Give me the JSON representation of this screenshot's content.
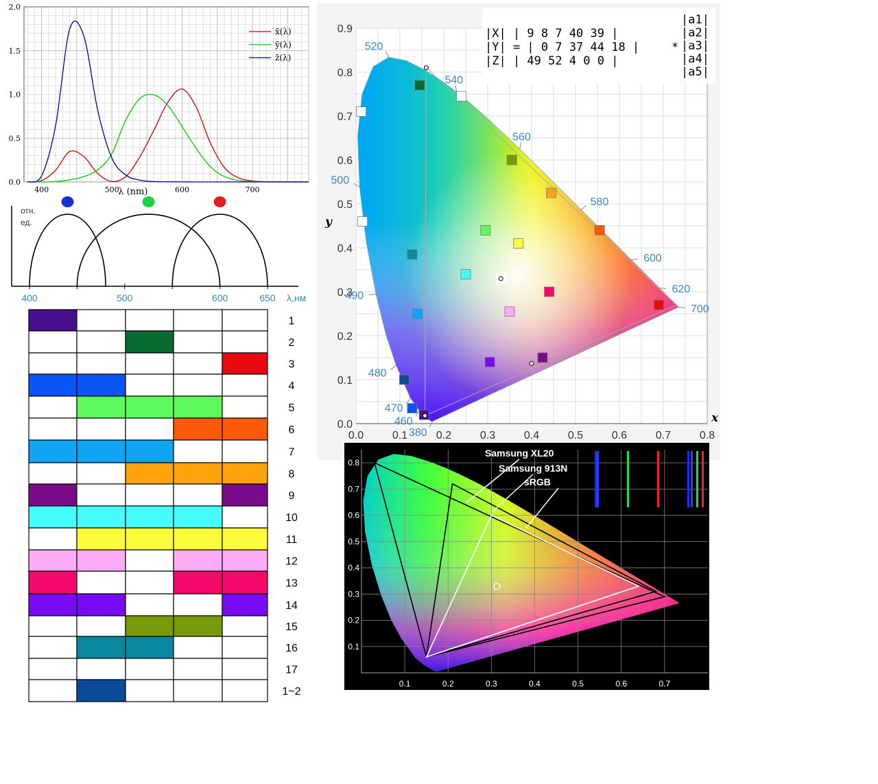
{
  "chart_data": [
    {
      "type": "line",
      "id": "cie-color-matching-functions",
      "x": [
        380,
        400,
        420,
        440,
        460,
        480,
        500,
        520,
        540,
        560,
        580,
        600,
        620,
        640,
        660,
        680,
        700,
        720,
        740,
        780
      ],
      "xlabel": "λ (nm)",
      "xticks": [
        "400",
        "500",
        "600",
        "700"
      ],
      "yticks": [
        "0.0",
        "0.5",
        "1.0",
        "1.5",
        "2.0"
      ],
      "xlim": [
        375,
        780
      ],
      "ylim": [
        0,
        2.0
      ],
      "grid": true,
      "legend_position": "top-right",
      "series": [
        {
          "name": "x̄(λ)",
          "color": "#cc0000",
          "values": [
            0.0,
            0.014,
            0.134,
            0.348,
            0.29,
            0.095,
            0.005,
            0.063,
            0.29,
            0.595,
            0.916,
            1.062,
            0.854,
            0.448,
            0.165,
            0.047,
            0.011,
            0.003,
            0.001,
            0.0
          ]
        },
        {
          "name": "ȳ(λ)",
          "color": "#00cc00",
          "values": [
            0.0,
            0.0004,
            0.004,
            0.023,
            0.06,
            0.139,
            0.323,
            0.71,
            0.954,
            0.995,
            0.87,
            0.631,
            0.381,
            0.175,
            0.061,
            0.017,
            0.004,
            0.001,
            0.0003,
            0.0
          ]
        },
        {
          "name": "z̄(λ)",
          "color": "#000099",
          "values": [
            0.0,
            0.068,
            0.646,
            1.747,
            1.669,
            0.813,
            0.272,
            0.078,
            0.02,
            0.004,
            0.002,
            0.001,
            0.0,
            0.0,
            0.0,
            0.0,
            0.0,
            0.0,
            0.0,
            0.0
          ]
        }
      ]
    },
    {
      "type": "line",
      "id": "cone-sensitivity-curves",
      "ylabel_lines": [
        "отн.",
        "ед."
      ],
      "xlabel": "λ,нм",
      "xticks": [
        "400",
        "500",
        "600",
        "650"
      ],
      "x_domain": [
        380,
        670
      ],
      "peaks": [
        {
          "center": 440,
          "from": 400,
          "to": 480,
          "marker_color": "#1530d0"
        },
        {
          "center": 525,
          "from": 450,
          "to": 600,
          "marker_color": "#20d040"
        },
        {
          "center": 600,
          "from": 550,
          "to": 650,
          "marker_color": "#e02020"
        }
      ]
    },
    {
      "type": "table",
      "id": "color-combination-table",
      "columns": 5,
      "row_labels": [
        "1",
        "2",
        "3",
        "4",
        "5",
        "6",
        "7",
        "8",
        "9",
        "10",
        "11",
        "12",
        "13",
        "14",
        "15",
        "16",
        "17",
        "1~2"
      ],
      "cells": [
        [
          "#46108f",
          "",
          "",
          "",
          ""
        ],
        [
          "",
          "",
          "#0a6b32",
          "",
          ""
        ],
        [
          "",
          "",
          "",
          "",
          "#e80a10"
        ],
        [
          "#0a55f5",
          "#0a55f5",
          "",
          "",
          ""
        ],
        [
          "",
          "#5cfa5a",
          "#5cfa5a",
          "#5cfa5a",
          ""
        ],
        [
          "",
          "",
          "",
          "#fc5a0a",
          "#fc5a0a"
        ],
        [
          "#10a4f5",
          "#10a4f5",
          "#10a4f5",
          "",
          ""
        ],
        [
          "",
          "",
          "#fca20a",
          "#fca20a",
          "#fca20a"
        ],
        [
          "#7a0c8a",
          "",
          "",
          "",
          "#7a0c8a"
        ],
        [
          "#45fcfc",
          "#45fcfc",
          "#45fcfc",
          "#45fcfc",
          ""
        ],
        [
          "",
          "#fcfc3a",
          "#fcfc3a",
          "#fcfc3a",
          "#fcfc3a"
        ],
        [
          "#fcacf5",
          "#fcacf5",
          "",
          "#fcacf5",
          "#fcacf5"
        ],
        [
          "#f50a6b",
          "",
          "",
          "#f50a6b",
          "#f50a6b"
        ],
        [
          "#780af5",
          "#780af5",
          "",
          "",
          "#780af5"
        ],
        [
          "",
          "",
          "#789a0a",
          "#789a0a",
          ""
        ],
        [
          "",
          "#0a88a0",
          "#0a88a0",
          "",
          ""
        ],
        [
          "",
          "",
          "",
          "",
          ""
        ],
        [
          "",
          "#0a4a9a",
          "",
          "",
          ""
        ]
      ]
    },
    {
      "type": "scatter",
      "id": "cie-xy-chromaticity-diagram",
      "xlabel": "x",
      "ylabel": "y",
      "xlim": [
        0,
        0.8
      ],
      "ylim": [
        0,
        0.9
      ],
      "xticks": [
        "0.0",
        "0.1",
        "0.2",
        "0.3",
        "0.4",
        "0.5",
        "0.6",
        "0.7",
        "0.8"
      ],
      "yticks": [
        "0.0",
        "0.1",
        "0.2",
        "0.3",
        "0.4",
        "0.5",
        "0.6",
        "0.7",
        "0.8",
        "0.9"
      ],
      "grid": true,
      "spectral_locus": [
        [
          0.1741,
          0.005
        ],
        [
          0.1738,
          0.0049
        ],
        [
          0.1733,
          0.0048
        ],
        [
          0.1726,
          0.0048
        ],
        [
          0.1714,
          0.0051
        ],
        [
          0.1689,
          0.0069
        ],
        [
          0.1644,
          0.0109
        ],
        [
          0.1566,
          0.0177
        ],
        [
          0.144,
          0.0297
        ],
        [
          0.1241,
          0.0578
        ],
        [
          0.0913,
          0.1327
        ],
        [
          0.0687,
          0.2007
        ],
        [
          0.0454,
          0.295
        ],
        [
          0.0235,
          0.4127
        ],
        [
          0.0082,
          0.5384
        ],
        [
          0.0039,
          0.6548
        ],
        [
          0.0139,
          0.7502
        ],
        [
          0.0389,
          0.812
        ],
        [
          0.0743,
          0.8338
        ],
        [
          0.1142,
          0.8262
        ],
        [
          0.1547,
          0.8059
        ],
        [
          0.1929,
          0.7816
        ],
        [
          0.2296,
          0.7543
        ],
        [
          0.2658,
          0.7243
        ],
        [
          0.3016,
          0.6923
        ],
        [
          0.3373,
          0.6589
        ],
        [
          0.3731,
          0.6245
        ],
        [
          0.4087,
          0.5896
        ],
        [
          0.4441,
          0.5547
        ],
        [
          0.4788,
          0.5202
        ],
        [
          0.5125,
          0.4866
        ],
        [
          0.5448,
          0.4544
        ],
        [
          0.5752,
          0.4242
        ],
        [
          0.6029,
          0.3965
        ],
        [
          0.627,
          0.3725
        ],
        [
          0.6482,
          0.3514
        ],
        [
          0.6658,
          0.334
        ],
        [
          0.6801,
          0.3197
        ],
        [
          0.6915,
          0.3083
        ],
        [
          0.7006,
          0.2993
        ],
        [
          0.7079,
          0.292
        ],
        [
          0.714,
          0.2859
        ],
        [
          0.719,
          0.2809
        ],
        [
          0.723,
          0.277
        ],
        [
          0.726,
          0.274
        ],
        [
          0.7347,
          0.2653
        ]
      ],
      "wavelength_labels": [
        {
          "text": "520",
          "x": 0.0743,
          "y": 0.8338
        },
        {
          "text": "540",
          "x": 0.2296,
          "y": 0.7543
        },
        {
          "text": "560",
          "x": 0.3731,
          "y": 0.6245
        },
        {
          "text": "580",
          "x": 0.5125,
          "y": 0.4866
        },
        {
          "text": "600",
          "x": 0.627,
          "y": 0.3725
        },
        {
          "text": "620",
          "x": 0.6915,
          "y": 0.3083
        },
        {
          "text": "700",
          "x": 0.7347,
          "y": 0.2653
        },
        {
          "text": "500",
          "x": 0.0082,
          "y": 0.5384
        },
        {
          "text": "490",
          "x": 0.0454,
          "y": 0.295
        },
        {
          "text": "480",
          "x": 0.0913,
          "y": 0.1327
        },
        {
          "text": "470",
          "x": 0.1241,
          "y": 0.0578
        },
        {
          "text": "460",
          "x": 0.144,
          "y": 0.0297
        },
        {
          "text": "380",
          "x": 0.1741,
          "y": 0.005
        }
      ],
      "triangle": [
        [
          0.16,
          0.81
        ],
        [
          0.73,
          0.27
        ],
        [
          0.157,
          0.018
        ]
      ],
      "white_point": [
        0.33,
        0.33
      ],
      "markers": [
        {
          "x": 0.145,
          "y": 0.77,
          "color": "#0a6b32"
        },
        {
          "x": 0.355,
          "y": 0.6,
          "color": "#789a0a"
        },
        {
          "x": 0.445,
          "y": 0.525,
          "color": "#fca20a"
        },
        {
          "x": 0.555,
          "y": 0.44,
          "color": "#fc5a0a"
        },
        {
          "x": 0.69,
          "y": 0.27,
          "color": "#e80a10"
        },
        {
          "x": 0.295,
          "y": 0.44,
          "color": "#5cfa5a"
        },
        {
          "x": 0.37,
          "y": 0.41,
          "color": "#fcfc3a"
        },
        {
          "x": 0.25,
          "y": 0.34,
          "color": "#45fcfc"
        },
        {
          "x": 0.44,
          "y": 0.3,
          "color": "#f50a6b"
        },
        {
          "x": 0.35,
          "y": 0.255,
          "color": "#fcacf5"
        },
        {
          "x": 0.128,
          "y": 0.385,
          "color": "#0a88a0"
        },
        {
          "x": 0.14,
          "y": 0.25,
          "color": "#10a4f5"
        },
        {
          "x": 0.305,
          "y": 0.14,
          "color": "#780af5"
        },
        {
          "x": 0.425,
          "y": 0.15,
          "color": "#7a0c8a"
        },
        {
          "x": 0.11,
          "y": 0.1,
          "color": "#0a4a9a"
        },
        {
          "x": 0.128,
          "y": 0.035,
          "color": "#0a55f5"
        },
        {
          "x": 0.155,
          "y": 0.02,
          "color": "#46108f"
        },
        {
          "x": 0.012,
          "y": 0.71,
          "color": "#ffffff"
        },
        {
          "x": 0.24,
          "y": 0.745,
          "color": "#ffffff"
        },
        {
          "x": 0.015,
          "y": 0.46,
          "color": "#ffffff"
        }
      ]
    },
    {
      "type": "line",
      "id": "monitor-gamut-comparison",
      "xticks": [
        "0.1",
        "0.2",
        "0.3",
        "0.4",
        "0.5",
        "0.6",
        "0.7"
      ],
      "yticks": [
        "0.1",
        "0.2",
        "0.3",
        "0.4",
        "0.5",
        "0.6",
        "0.7",
        "0.8"
      ],
      "xlim": [
        0,
        0.8
      ],
      "ylim": [
        0,
        0.85
      ],
      "series": [
        {
          "name": "Samsung XL20",
          "points": [
            [
              0.21,
              0.72
            ],
            [
              0.68,
              0.31
            ],
            [
              0.15,
              0.06
            ]
          ],
          "color": "#000000"
        },
        {
          "name": "Samsung 913N",
          "points": [
            [
              0.03,
              0.8
            ],
            [
              0.7,
              0.29
            ],
            [
              0.15,
              0.06
            ]
          ],
          "color": "#000000"
        },
        {
          "name": "sRGB",
          "points": [
            [
              0.3,
              0.6
            ],
            [
              0.64,
              0.33
            ],
            [
              0.15,
              0.06
            ]
          ],
          "color": "#ffffff"
        }
      ],
      "white_point": [
        0.3127,
        0.329
      ],
      "spectrum_bars": [
        {
          "color": "#1a2cff"
        },
        {
          "color": "#2a3cff"
        },
        {
          "color": "#20e040"
        },
        {
          "color": "#ff2020"
        },
        {
          "color": "#1a2cff"
        },
        {
          "color": "#2a3cff"
        },
        {
          "color": "#20e040"
        },
        {
          "color": "#ff2020"
        }
      ]
    }
  ],
  "xyz_matrix": {
    "rows": [
      [
        "|X|",
        "|",
        "9",
        "8",
        "7",
        "40",
        "39",
        "|",
        "|a1|"
      ],
      [
        "|Y|",
        "=",
        "|",
        "0",
        "7",
        "37",
        "44",
        "18",
        "|",
        "*",
        "|a2|"
      ],
      [
        "|Z|",
        "|",
        "49",
        "52",
        "4",
        "0",
        "0",
        "|",
        "|a3|"
      ]
    ],
    "lines": [
      "|X|   |  9   8   7   40  39  |",
      "|Y| = |  0   7   37  44  18  |",
      "|Z|   |  49  52  4   0   0   |"
    ],
    "vector": [
      "|a1|",
      "|a2|",
      "|a3|",
      "|a4|",
      "|a5|"
    ],
    "operator": "*"
  }
}
